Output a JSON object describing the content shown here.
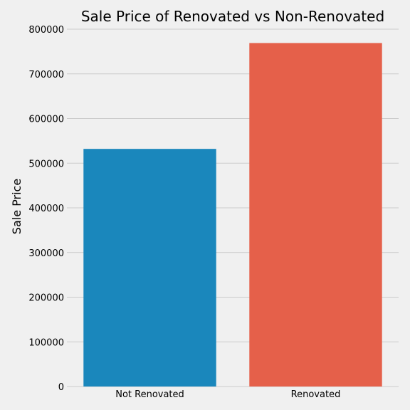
{
  "chart_data": {
    "type": "bar",
    "title": "Sale Price of Renovated vs Non-Renovated",
    "xlabel": "",
    "ylabel": "Sale Price",
    "categories": [
      "Not Renovated",
      "Renovated"
    ],
    "values": [
      532000,
      769000
    ],
    "ylim": [
      0,
      800000
    ],
    "yticks": [
      0,
      100000,
      200000,
      300000,
      400000,
      500000,
      600000,
      700000,
      800000
    ],
    "ytick_labels": [
      "0",
      "100000",
      "200000",
      "300000",
      "400000",
      "500000",
      "600000",
      "700000",
      "800000"
    ],
    "colors": [
      "#1a87bc",
      "#e5604a"
    ],
    "grid": true,
    "background": "#f0f0f0",
    "grid_color": "#cbcbcb"
  }
}
